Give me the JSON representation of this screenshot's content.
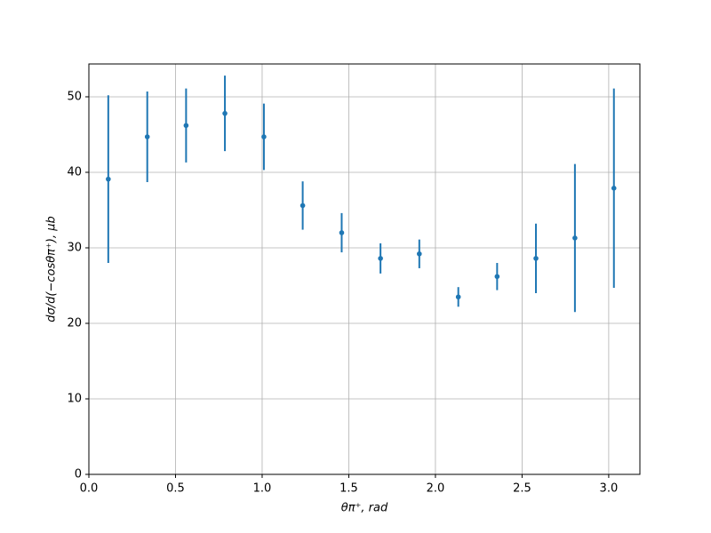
{
  "chart_data": {
    "type": "errorbar",
    "xlabel": "θπ⁺, rad",
    "ylabel": "dσ/d(−cosθπ⁺), μb",
    "x": [
      0.112,
      0.337,
      0.561,
      0.785,
      1.01,
      1.234,
      1.459,
      1.683,
      1.907,
      2.132,
      2.356,
      2.58,
      2.805,
      3.03
    ],
    "values": [
      39.1,
      44.7,
      46.2,
      47.8,
      44.7,
      35.6,
      32.0,
      28.6,
      29.2,
      23.5,
      26.2,
      28.6,
      31.3,
      37.9
    ],
    "errors": [
      11.1,
      6.0,
      4.9,
      5.0,
      4.4,
      3.2,
      2.6,
      2.0,
      1.9,
      1.3,
      1.8,
      4.6,
      9.8,
      13.2
    ],
    "color": "#1f77b4",
    "xlim": [
      0,
      3.18
    ],
    "ylim": [
      0,
      54.35
    ],
    "xticks": [
      {
        "value": 0,
        "label": "0.0"
      },
      0.5,
      {
        "value": 1,
        "label": "1.0"
      },
      1.5,
      {
        "value": 2,
        "label": "2.0"
      },
      2.5,
      {
        "value": 3,
        "label": "3.0"
      }
    ],
    "yticks": [
      0,
      10,
      20,
      30,
      40,
      50
    ],
    "grid": true
  }
}
